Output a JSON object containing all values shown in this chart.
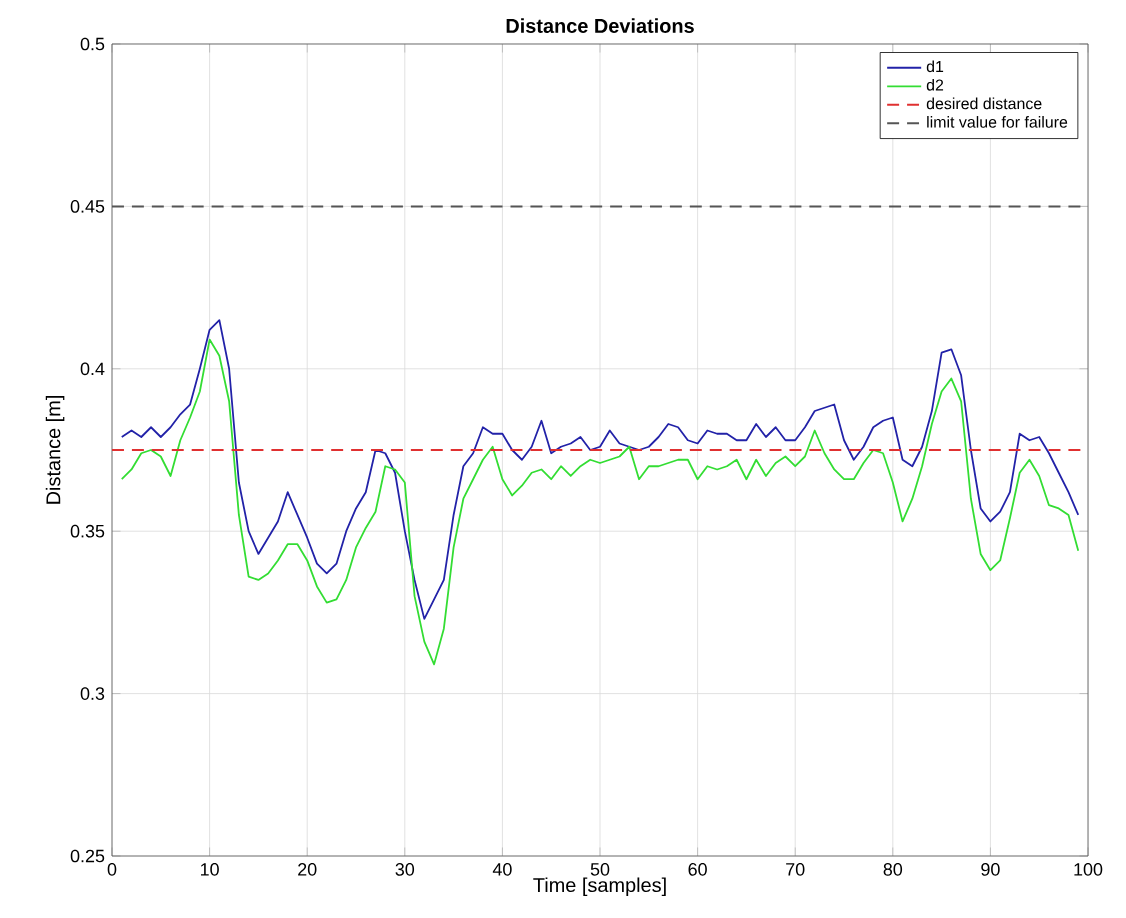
{
  "chart_data": {
    "type": "line",
    "title": "Distance Deviations",
    "xlabel": "Time [samples]",
    "ylabel": "Distance [m]",
    "x": [
      1,
      2,
      3,
      4,
      5,
      6,
      7,
      8,
      9,
      10,
      11,
      12,
      13,
      14,
      15,
      16,
      17,
      18,
      19,
      20,
      21,
      22,
      23,
      24,
      25,
      26,
      27,
      28,
      29,
      30,
      31,
      32,
      33,
      34,
      35,
      36,
      37,
      38,
      39,
      40,
      41,
      42,
      43,
      44,
      45,
      46,
      47,
      48,
      49,
      50,
      51,
      52,
      53,
      54,
      55,
      56,
      57,
      58,
      59,
      60,
      61,
      62,
      63,
      64,
      65,
      66,
      67,
      68,
      69,
      70,
      71,
      72,
      73,
      74,
      75,
      76,
      77,
      78,
      79,
      80,
      81,
      82,
      83,
      84,
      85,
      86,
      87,
      88,
      89,
      90,
      91,
      92,
      93,
      94,
      95,
      96,
      97,
      98,
      99
    ],
    "series": [
      {
        "name": "d1",
        "color": "#2222a8",
        "values": [
          0.379,
          0.381,
          0.379,
          0.382,
          0.379,
          0.382,
          0.386,
          0.389,
          0.4,
          0.412,
          0.415,
          0.4,
          0.365,
          0.35,
          0.343,
          0.348,
          0.353,
          0.362,
          0.355,
          0.348,
          0.34,
          0.337,
          0.34,
          0.35,
          0.357,
          0.362,
          0.375,
          0.374,
          0.368,
          0.35,
          0.335,
          0.323,
          0.329,
          0.335,
          0.355,
          0.37,
          0.374,
          0.382,
          0.38,
          0.38,
          0.375,
          0.372,
          0.376,
          0.384,
          0.374,
          0.376,
          0.377,
          0.379,
          0.375,
          0.376,
          0.381,
          0.377,
          0.376,
          0.375,
          0.376,
          0.379,
          0.383,
          0.382,
          0.378,
          0.377,
          0.381,
          0.38,
          0.38,
          0.378,
          0.378,
          0.383,
          0.379,
          0.382,
          0.378,
          0.378,
          0.382,
          0.387,
          0.388,
          0.389,
          0.378,
          0.372,
          0.376,
          0.382,
          0.384,
          0.385,
          0.372,
          0.37,
          0.376,
          0.387,
          0.405,
          0.406,
          0.398,
          0.375,
          0.357,
          0.353,
          0.356,
          0.362,
          0.38,
          0.378,
          0.379,
          0.374,
          0.368,
          0.362,
          0.355
        ]
      },
      {
        "name": "d2",
        "color": "#33dd33",
        "values": [
          0.366,
          0.369,
          0.374,
          0.375,
          0.373,
          0.367,
          0.378,
          0.385,
          0.393,
          0.409,
          0.404,
          0.39,
          0.355,
          0.336,
          0.335,
          0.337,
          0.341,
          0.346,
          0.346,
          0.341,
          0.333,
          0.328,
          0.329,
          0.335,
          0.345,
          0.351,
          0.356,
          0.37,
          0.369,
          0.365,
          0.33,
          0.316,
          0.309,
          0.32,
          0.345,
          0.36,
          0.366,
          0.372,
          0.376,
          0.366,
          0.361,
          0.364,
          0.368,
          0.369,
          0.366,
          0.37,
          0.367,
          0.37,
          0.372,
          0.371,
          0.372,
          0.373,
          0.376,
          0.366,
          0.37,
          0.37,
          0.371,
          0.372,
          0.372,
          0.366,
          0.37,
          0.369,
          0.37,
          0.372,
          0.366,
          0.372,
          0.367,
          0.371,
          0.373,
          0.37,
          0.373,
          0.381,
          0.374,
          0.369,
          0.366,
          0.366,
          0.371,
          0.375,
          0.374,
          0.365,
          0.353,
          0.36,
          0.37,
          0.383,
          0.393,
          0.397,
          0.39,
          0.36,
          0.343,
          0.338,
          0.341,
          0.354,
          0.368,
          0.372,
          0.367,
          0.358,
          0.357,
          0.355,
          0.344
        ]
      }
    ],
    "ref_lines": [
      {
        "axis": "y",
        "value": 0.375,
        "label": "desired distance",
        "color": "#e03030",
        "line_style": "dashed"
      },
      {
        "axis": "y",
        "value": 0.45,
        "label": "limit value for failure",
        "color": "#555555",
        "line_style": "dashed"
      }
    ],
    "xlim": [
      0,
      100
    ],
    "ylim": [
      0.25,
      0.5
    ],
    "xticks": [
      0,
      10,
      20,
      30,
      40,
      50,
      60,
      70,
      80,
      90,
      100
    ],
    "yticks": [
      0.25,
      0.3,
      0.35,
      0.4,
      0.45,
      0.5
    ],
    "grid": true,
    "legend": "top right",
    "line_style": "solid",
    "marker": "none"
  }
}
